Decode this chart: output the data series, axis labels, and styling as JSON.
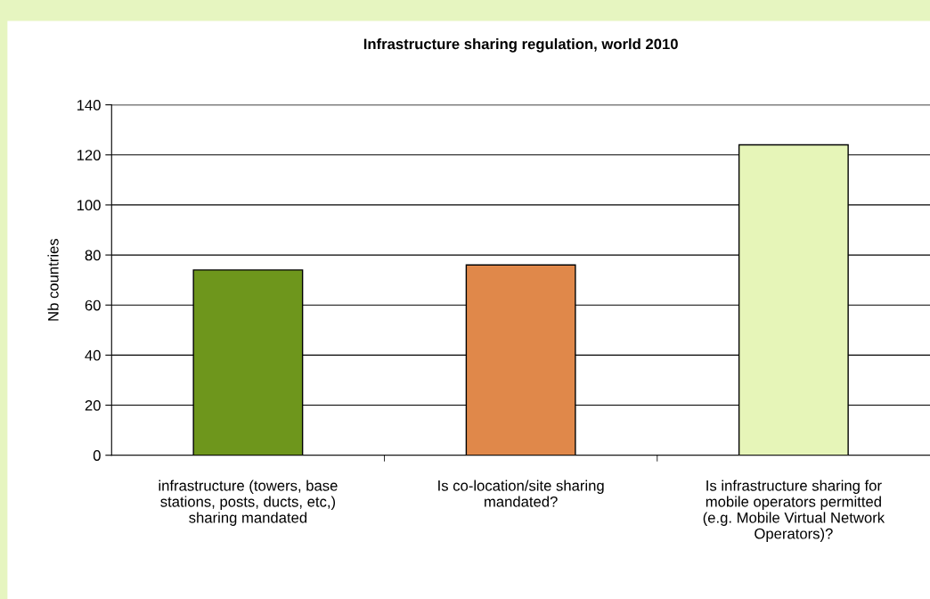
{
  "chart_data": {
    "type": "bar",
    "title": "Infrastructure sharing regulation, world 2010",
    "ylabel": "Nb countries",
    "categories": [
      "infrastructure (towers, base\nstations, posts, ducts, etc,)\nsharing mandated",
      "Is co-location/site sharing\nmandated?",
      "Is infrastructure sharing for\nmobile operators permitted\n(e.g. Mobile Virtual Network\nOperators)?"
    ],
    "values": [
      74,
      76,
      124
    ],
    "colors": [
      "#6e961c",
      "#e0884a",
      "#e6f5b8"
    ],
    "ylim": [
      0,
      140
    ],
    "yticks": [
      0,
      20,
      40,
      60,
      80,
      100,
      120,
      140
    ],
    "grid": "y"
  }
}
